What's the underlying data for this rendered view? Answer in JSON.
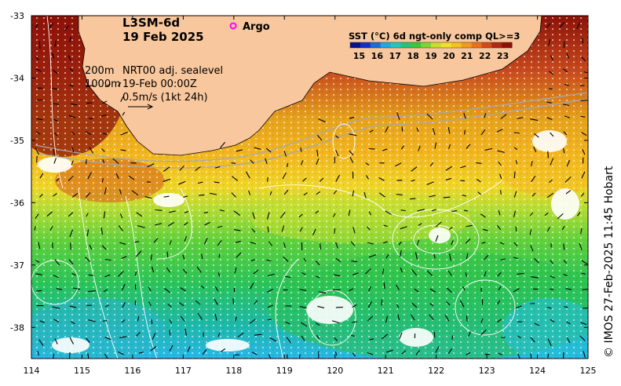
{
  "title": {
    "product": "L3SM-6d",
    "date": "19 Feb 2025"
  },
  "argo_label": "Argo",
  "info": {
    "contours": [
      "200m",
      "1000m"
    ],
    "sealevel": "NRT00 adj. sealevel",
    "time": "19-Feb 00:00Z",
    "vector_scale": "0.5m/s (1kt 24h)"
  },
  "colorbar": {
    "title": "SST (°C) 6d ngt-only comp QL>=3",
    "ticks": [
      "15",
      "16",
      "17",
      "18",
      "19",
      "20",
      "21",
      "22",
      "23"
    ],
    "range": [
      14.5,
      23.5
    ]
  },
  "axes": {
    "x_ticks": [
      "114",
      "115",
      "116",
      "117",
      "118",
      "119",
      "120",
      "121",
      "122",
      "123",
      "124",
      "125"
    ],
    "y_ticks": [
      "-33",
      "-34",
      "-35",
      "-36",
      "-37",
      "-38"
    ],
    "lon_range": [
      114,
      125
    ],
    "lat_range": [
      -38.5,
      -33
    ]
  },
  "credit": "© IMOS 27-Feb-2025 11:45 Hobart",
  "colors": {
    "land": "#f9c79d",
    "argo_marker": "#ff00ff",
    "contour": "#ffffff",
    "shelf_line": "#a9a9a9"
  }
}
